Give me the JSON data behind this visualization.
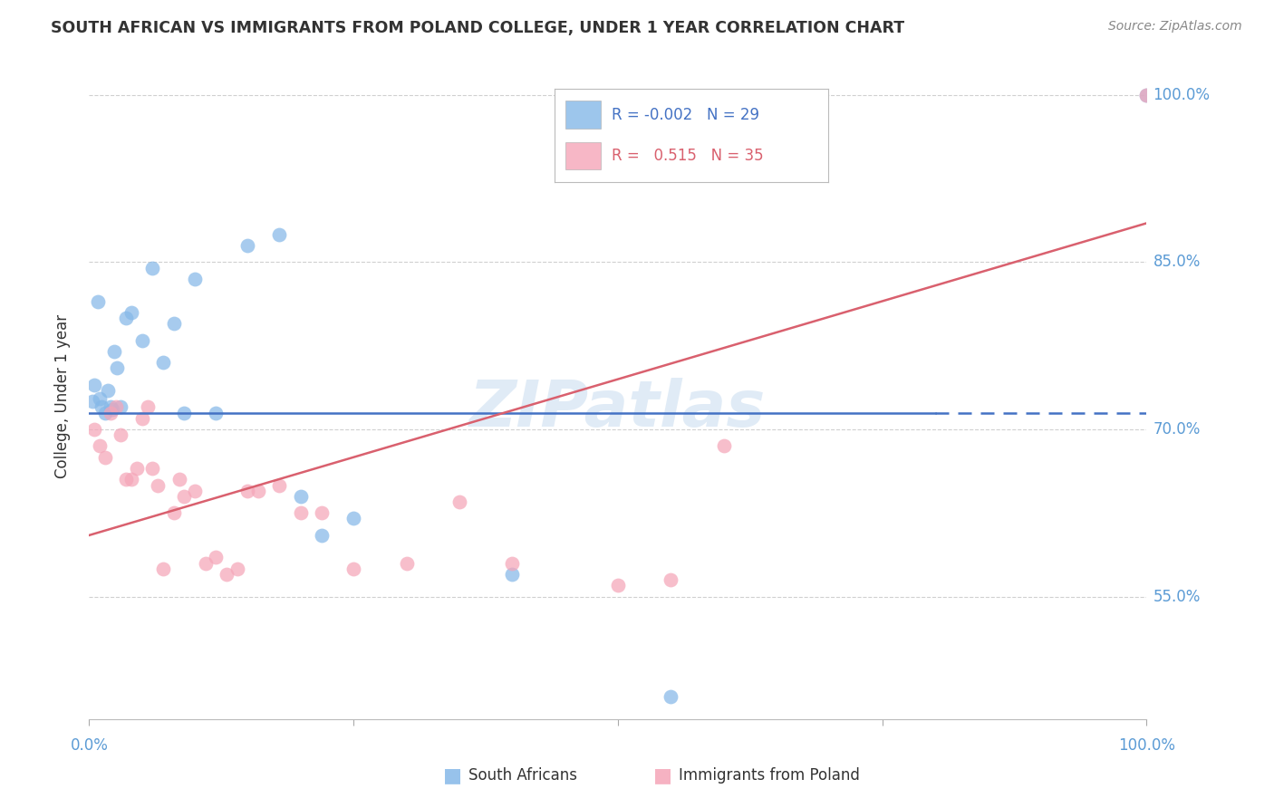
{
  "title": "SOUTH AFRICAN VS IMMIGRANTS FROM POLAND COLLEGE, UNDER 1 YEAR CORRELATION CHART",
  "source": "Source: ZipAtlas.com",
  "ylabel": "College, Under 1 year",
  "y_ticks": [
    55.0,
    70.0,
    85.0,
    100.0
  ],
  "y_tick_labels": [
    "55.0%",
    "70.0%",
    "85.0%",
    "100.0%"
  ],
  "legend_R1": "-0.002",
  "legend_N1": "29",
  "legend_R2": "0.515",
  "legend_N2": "35",
  "legend_label1": "South Africans",
  "legend_label2": "Immigrants from Poland",
  "blue_scatter_x": [
    0.3,
    0.5,
    0.8,
    1.0,
    1.2,
    1.5,
    1.8,
    2.0,
    2.2,
    2.4,
    2.6,
    3.0,
    3.5,
    4.0,
    5.0,
    6.0,
    7.0,
    8.0,
    9.0,
    10.0,
    12.0,
    15.0,
    18.0,
    20.0,
    22.0,
    25.0,
    40.0,
    55.0,
    100.0
  ],
  "blue_scatter_y": [
    72.5,
    74.0,
    81.5,
    72.8,
    72.0,
    71.5,
    73.5,
    72.0,
    71.8,
    77.0,
    75.5,
    72.0,
    80.0,
    80.5,
    78.0,
    84.5,
    76.0,
    79.5,
    71.5,
    83.5,
    71.5,
    86.5,
    87.5,
    64.0,
    60.5,
    62.0,
    57.0,
    46.0,
    100.0
  ],
  "pink_scatter_x": [
    0.5,
    1.0,
    1.5,
    2.0,
    2.5,
    3.0,
    3.5,
    4.0,
    4.5,
    5.0,
    5.5,
    6.0,
    6.5,
    7.0,
    8.0,
    8.5,
    9.0,
    10.0,
    11.0,
    12.0,
    13.0,
    14.0,
    15.0,
    16.0,
    18.0,
    20.0,
    22.0,
    25.0,
    30.0,
    35.0,
    40.0,
    50.0,
    55.0,
    60.0,
    100.0
  ],
  "pink_scatter_y": [
    70.0,
    68.5,
    67.5,
    71.5,
    72.0,
    69.5,
    65.5,
    65.5,
    66.5,
    71.0,
    72.0,
    66.5,
    65.0,
    57.5,
    62.5,
    65.5,
    64.0,
    64.5,
    58.0,
    58.5,
    57.0,
    57.5,
    64.5,
    64.5,
    65.0,
    62.5,
    62.5,
    57.5,
    58.0,
    63.5,
    58.0,
    56.0,
    56.5,
    68.5,
    100.0
  ],
  "blue_line_y": 71.5,
  "blue_solid_xmax": 80.0,
  "pink_line_x": [
    0,
    100
  ],
  "pink_line_y": [
    60.5,
    88.5
  ],
  "xlim": [
    0,
    100
  ],
  "ylim": [
    44,
    102
  ],
  "watermark": "ZIPatlas",
  "bg_color": "#ffffff",
  "grid_color": "#d0d0d0",
  "tick_color": "#5b9bd5",
  "title_color": "#333333",
  "blue_dot_color": "#85b8e8",
  "pink_dot_color": "#f5a5b8",
  "blue_line_color": "#4472c4",
  "pink_line_color": "#d9606e",
  "watermark_color": "#b0cce8"
}
